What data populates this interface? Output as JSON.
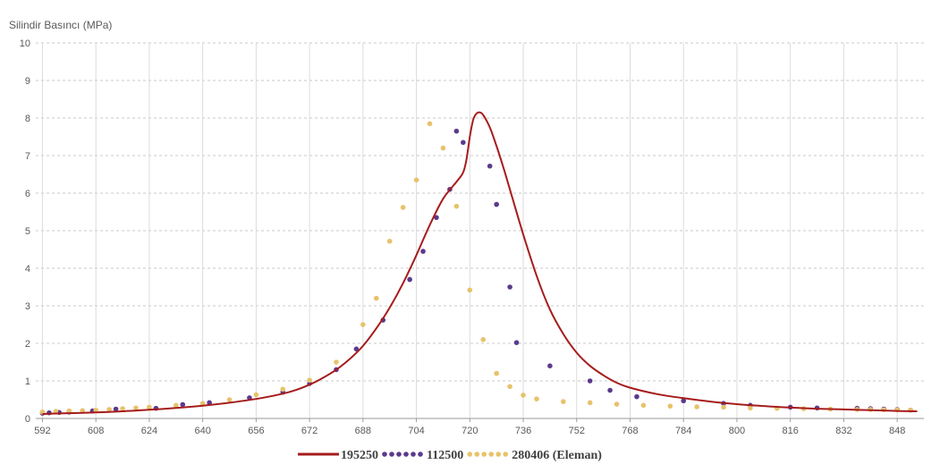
{
  "chart_data": {
    "type": "line",
    "ylabel": "Silindir Basıncı (MPa)",
    "xlim": [
      590,
      856
    ],
    "ylim": [
      0,
      10
    ],
    "x_ticks": [
      "592",
      "608",
      "624",
      "640",
      "656",
      "672",
      "688",
      "704",
      "720",
      "736",
      "752",
      "768",
      "784",
      "800",
      "816",
      "832",
      "848"
    ],
    "y_ticks": [
      "0",
      "1",
      "2",
      "3",
      "4",
      "5",
      "6",
      "7",
      "8",
      "9",
      "10"
    ],
    "grid": "vertical-solid, horizontal-dashed",
    "legend_position": "bottom",
    "series": [
      {
        "name": "195250",
        "style": "line",
        "color": "#a61c1c",
        "x": [
          592,
          600,
          608,
          616,
          624,
          632,
          640,
          648,
          656,
          664,
          668,
          672,
          676,
          680,
          684,
          688,
          692,
          696,
          700,
          704,
          708,
          712,
          716,
          718,
          719,
          720,
          721,
          722,
          723,
          724,
          726,
          728,
          730,
          732,
          736,
          740,
          744,
          748,
          752,
          756,
          760,
          764,
          768,
          776,
          784,
          792,
          800,
          808,
          816,
          824,
          832,
          840,
          848,
          854
        ],
        "y": [
          0.12,
          0.14,
          0.16,
          0.19,
          0.23,
          0.28,
          0.34,
          0.42,
          0.52,
          0.66,
          0.76,
          0.9,
          1.08,
          1.3,
          1.58,
          1.93,
          2.4,
          2.95,
          3.6,
          4.35,
          5.15,
          5.85,
          6.3,
          6.55,
          6.9,
          7.5,
          7.95,
          8.12,
          8.15,
          8.08,
          7.75,
          7.25,
          6.7,
          6.1,
          4.9,
          3.8,
          2.9,
          2.25,
          1.75,
          1.4,
          1.15,
          0.95,
          0.82,
          0.65,
          0.54,
          0.45,
          0.38,
          0.33,
          0.29,
          0.26,
          0.24,
          0.22,
          0.2,
          0.19
        ]
      },
      {
        "name": "112500",
        "style": "dots",
        "color": "#5b3a8c",
        "x": [
          592,
          594,
          597,
          600,
          607,
          614,
          626,
          634,
          642,
          654,
          664,
          672,
          680,
          686,
          694,
          702,
          706,
          710,
          714,
          716,
          718,
          726,
          728,
          732,
          734,
          744,
          756,
          762,
          770,
          784,
          796,
          804,
          816,
          824,
          836,
          840,
          844,
          848,
          852
        ],
        "y": [
          0.14,
          0.15,
          0.16,
          0.17,
          0.2,
          0.25,
          0.27,
          0.37,
          0.42,
          0.55,
          0.7,
          0.93,
          1.3,
          1.85,
          2.62,
          3.7,
          4.45,
          5.35,
          6.1,
          7.65,
          7.35,
          6.72,
          5.7,
          3.5,
          2.02,
          1.4,
          1.0,
          0.75,
          0.58,
          0.47,
          0.4,
          0.35,
          0.3,
          0.28,
          0.27,
          0.26,
          0.25,
          0.24,
          0.22
        ]
      },
      {
        "name": "280406 (Eleman)",
        "style": "dots",
        "color": "#e8c26b",
        "x": [
          592,
          596,
          600,
          604,
          608,
          612,
          616,
          620,
          624,
          632,
          640,
          648,
          656,
          664,
          672,
          680,
          688,
          692,
          696,
          700,
          704,
          708,
          712,
          716,
          720,
          724,
          728,
          732,
          736,
          740,
          748,
          756,
          764,
          772,
          780,
          788,
          796,
          804,
          812,
          820,
          828,
          836,
          840,
          844,
          848,
          852
        ],
        "y": [
          0.17,
          0.19,
          0.2,
          0.21,
          0.22,
          0.24,
          0.26,
          0.28,
          0.3,
          0.35,
          0.4,
          0.5,
          0.63,
          0.78,
          1.02,
          1.5,
          2.5,
          3.2,
          4.72,
          5.62,
          6.35,
          7.85,
          7.2,
          5.65,
          3.42,
          2.1,
          1.2,
          0.85,
          0.62,
          0.52,
          0.45,
          0.42,
          0.38,
          0.35,
          0.33,
          0.31,
          0.3,
          0.28,
          0.27,
          0.26,
          0.25,
          0.24,
          0.24,
          0.23,
          0.23,
          0.22
        ]
      }
    ]
  }
}
